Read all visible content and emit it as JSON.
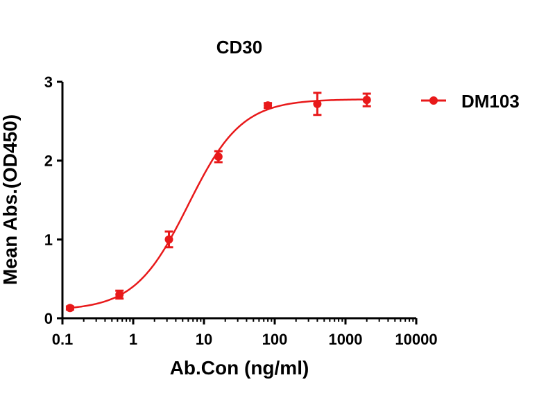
{
  "chart_data": {
    "type": "scatter",
    "title": "CD30",
    "xlabel": "Ab.Con (ng/ml)",
    "ylabel": "Mean Abs.(OD450)",
    "xscale": "log",
    "xlim": [
      0.1,
      10000
    ],
    "ylim": [
      0,
      3
    ],
    "xticks": [
      "0.1",
      "1",
      "10",
      "100",
      "1000",
      "10000"
    ],
    "yticks": [
      "0",
      "1",
      "2",
      "3"
    ],
    "grid": false,
    "legend_position": "right",
    "series": [
      {
        "name": "DM103",
        "color": "#e8191a",
        "marker": "circle",
        "fit": "4PL sigmoid",
        "points": [
          {
            "x": 0.128,
            "y": 0.13,
            "err": 0.02
          },
          {
            "x": 0.64,
            "y": 0.3,
            "err": 0.05
          },
          {
            "x": 3.2,
            "y": 1.0,
            "err": 0.1
          },
          {
            "x": 16,
            "y": 2.05,
            "err": 0.07
          },
          {
            "x": 80,
            "y": 2.7,
            "err": 0.03
          },
          {
            "x": 400,
            "y": 2.72,
            "err": 0.14
          },
          {
            "x": 2000,
            "y": 2.77,
            "err": 0.08
          }
        ],
        "curve": {
          "bottom": 0.1,
          "top": 2.78,
          "ec50": 6.0,
          "hill": 1.15
        }
      }
    ]
  }
}
